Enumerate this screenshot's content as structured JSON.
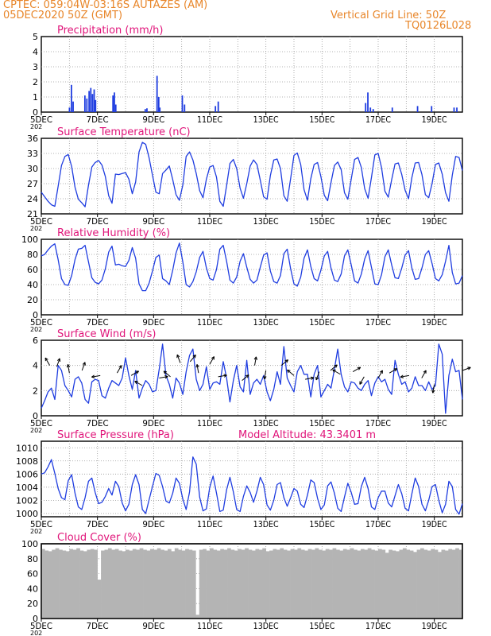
{
  "header": {
    "line1": "CPTEC:   059:04W-03:16S   AUTAZES (AM)",
    "line2": "05DEC2020 50Z (GMT)",
    "grid_note": "Vertical Grid Line: 50Z",
    "code": "TQ0126L028"
  },
  "colors": {
    "header": "#e8862a",
    "title": "#e0157a",
    "series": "#1f3de0",
    "cloud": "#b4b4b4",
    "grid": "#9a9a9a"
  },
  "x_axis": {
    "labels": [
      "5DEC",
      "7DEC",
      "9DEC",
      "11DEC",
      "13DEC",
      "15DEC",
      "17DEC",
      "19DEC"
    ],
    "label_days": [
      0,
      2,
      4,
      6,
      8,
      10,
      12,
      14
    ],
    "day_span": 15,
    "stub": "202"
  },
  "chart_data": [
    {
      "type": "bar",
      "title": "Precipitation (mm/h)",
      "ylim": [
        0,
        5
      ],
      "yticks": [
        0,
        1,
        2,
        3,
        4,
        5
      ],
      "x_days": [
        1.0,
        1.07,
        1.13,
        1.55,
        1.62,
        1.7,
        1.76,
        1.82,
        1.88,
        1.93,
        2.55,
        2.6,
        2.65,
        3.7,
        3.76,
        4.12,
        4.18,
        4.22,
        5.02,
        5.1,
        6.2,
        6.3,
        11.55,
        11.63,
        11.72,
        11.82,
        12.5,
        13.4,
        13.9,
        14.7,
        14.8
      ],
      "values": [
        0.3,
        1.8,
        0.7,
        1.1,
        0.9,
        1.4,
        1.6,
        1.2,
        1.5,
        0.8,
        1.1,
        1.3,
        0.5,
        0.2,
        0.25,
        2.4,
        1.0,
        0.3,
        1.1,
        0.5,
        0.4,
        0.7,
        0.6,
        1.3,
        0.3,
        0.2,
        0.3,
        0.4,
        0.4,
        0.3,
        0.3
      ]
    },
    {
      "type": "line",
      "title": "Surface Temperature (nC)",
      "ylim": [
        21,
        36
      ],
      "yticks": [
        21,
        24,
        27,
        30,
        33,
        36
      ],
      "values": [
        25.3,
        24.4,
        23.5,
        22.8,
        22.5,
        26.5,
        30.6,
        32.4,
        32.8,
        30.4,
        26.3,
        23.9,
        23.2,
        22.4,
        26.7,
        30.3,
        31.2,
        31.6,
        30.7,
        28.4,
        24.6,
        23.1,
        28.9,
        28.8,
        29.0,
        29.2,
        27.9,
        25.0,
        27.3,
        33.3,
        35.2,
        34.8,
        32.1,
        28.7,
        25.3,
        25.0,
        29.0,
        29.7,
        30.5,
        27.8,
        24.8,
        23.7,
        26.7,
        32.4,
        33.3,
        31.7,
        29.0,
        25.6,
        24.2,
        27.9,
        30.3,
        30.6,
        28.3,
        23.5,
        22.5,
        26.6,
        31.0,
        31.8,
        30.0,
        26.1,
        24.1,
        27.0,
        30.5,
        31.7,
        30.8,
        27.7,
        24.4,
        23.9,
        28.6,
        31.7,
        31.9,
        30.0,
        24.6,
        23.5,
        28.0,
        32.6,
        33.1,
        30.8,
        25.8,
        23.7,
        28.0,
        30.8,
        31.2,
        28.4,
        24.7,
        23.6,
        27.2,
        30.6,
        31.3,
        29.8,
        25.2,
        23.9,
        27.9,
        31.8,
        32.2,
        30.2,
        26.0,
        24.1,
        28.2,
        32.7,
        33.0,
        30.2,
        25.5,
        24.3,
        27.8,
        30.9,
        31.1,
        28.8,
        25.7,
        24.0,
        28.2,
        31.1,
        31.2,
        28.8,
        24.8,
        24.2,
        27.0,
        30.8,
        31.1,
        28.9,
        25.2,
        23.5,
        28.7,
        32.4,
        32.2,
        29.6
      ]
    },
    {
      "type": "line",
      "title": "Relative Humidity (%)",
      "ylim": [
        0,
        100
      ],
      "yticks": [
        0,
        20,
        40,
        60,
        80,
        100
      ],
      "values": [
        78,
        80,
        86,
        91,
        94,
        73,
        48,
        40,
        39,
        52,
        73,
        87,
        88,
        92,
        70,
        49,
        43,
        41,
        46,
        61,
        83,
        91,
        66,
        67,
        65,
        64,
        72,
        89,
        75,
        41,
        32,
        32,
        42,
        58,
        76,
        79,
        48,
        45,
        40,
        59,
        82,
        95,
        70,
        40,
        37,
        44,
        57,
        76,
        84,
        62,
        48,
        46,
        60,
        87,
        92,
        71,
        46,
        42,
        50,
        71,
        81,
        63,
        47,
        42,
        46,
        63,
        79,
        82,
        58,
        44,
        42,
        52,
        81,
        87,
        61,
        41,
        38,
        50,
        75,
        86,
        64,
        48,
        45,
        59,
        78,
        84,
        62,
        46,
        44,
        54,
        78,
        86,
        66,
        45,
        42,
        54,
        74,
        85,
        63,
        41,
        40,
        53,
        77,
        86,
        66,
        49,
        48,
        62,
        79,
        85,
        62,
        47,
        48,
        62,
        80,
        85,
        68,
        48,
        45,
        53,
        71,
        92,
        56,
        41,
        42,
        52
      ]
    },
    {
      "type": "line",
      "title": "Surface Wind (m/s)",
      "ylim": [
        0,
        6
      ],
      "yticks": [
        0,
        2,
        4,
        6
      ],
      "values": [
        0.6,
        1.2,
        1.9,
        2.2,
        1.3,
        4.0,
        3.6,
        2.4,
        2.0,
        1.5,
        2.9,
        3.1,
        2.6,
        1.3,
        1.0,
        2.7,
        2.9,
        2.8,
        1.6,
        1.4,
        2.2,
        2.8,
        2.6,
        2.4,
        3.0,
        4.6,
        3.2,
        2.1,
        3.6,
        1.4,
        2.2,
        2.8,
        2.5,
        1.9,
        2.0,
        3.7,
        5.7,
        3.2,
        2.5,
        1.4,
        3.0,
        2.6,
        1.7,
        3.5,
        4.8,
        5.3,
        2.9,
        2.0,
        2.5,
        3.9,
        2.1,
        2.6,
        2.7,
        2.5,
        4.3,
        3.0,
        1.1,
        2.8,
        4.0,
        2.3,
        1.9,
        4.4,
        1.7,
        2.6,
        2.9,
        2.5,
        3.2,
        1.9,
        1.2,
        2.1,
        3.5,
        2.5,
        5.5,
        3.0,
        2.4,
        1.9,
        3.5,
        4.0,
        3.3,
        3.3,
        1.5,
        3.3,
        4.0,
        1.5,
        2.0,
        2.5,
        2.2,
        3.7,
        5.3,
        3.3,
        2.3,
        1.9,
        2.7,
        2.6,
        2.2,
        2.0,
        2.5,
        2.8,
        1.6,
        2.6,
        3.1,
        2.7,
        2.9,
        2.1,
        1.7,
        4.4,
        3.3,
        2.5,
        2.7,
        1.9,
        2.2,
        3.1,
        2.4,
        2.4,
        2.0,
        2.7,
        2.1,
        2.4,
        5.7,
        4.9,
        0.2,
        3.2,
        4.5,
        3.5,
        3.6,
        1.3
      ]
    },
    {
      "type": "line",
      "title": "Surface Pressure (hPa)",
      "annotation": "Model Altitude: 43.3401 m",
      "ylim": [
        999.5,
        1011
      ],
      "yticks": [
        1000,
        1002,
        1004,
        1006,
        1008,
        1010
      ],
      "values": [
        1006.0,
        1006.2,
        1007.1,
        1008.2,
        1006.1,
        1003.8,
        1002.4,
        1002.1,
        1005.0,
        1005.9,
        1003.1,
        1001.0,
        1000.6,
        1002.4,
        1004.9,
        1005.4,
        1003.2,
        1001.5,
        1001.7,
        1002.6,
        1003.8,
        1002.8,
        1004.9,
        1004.1,
        1001.6,
        1000.4,
        1001.4,
        1004.4,
        1005.9,
        1004.4,
        1000.6,
        1000.0,
        1002.1,
        1004.1,
        1006.1,
        1005.8,
        1004.1,
        1001.9,
        1001.6,
        1003.1,
        1005.4,
        1004.6,
        1002.2,
        1000.6,
        1003.3,
        1008.6,
        1007.5,
        1002.5,
        1000.4,
        1000.7,
        1004.0,
        1005.7,
        1003.1,
        1000.3,
        1000.5,
        1003.6,
        1005.5,
        1003.3,
        1000.6,
        1000.3,
        1002.6,
        1004.2,
        1003.2,
        1001.7,
        1003.4,
        1005.5,
        1004.4,
        1001.3,
        1000.5,
        1002.0,
        1004.4,
        1004.7,
        1002.4,
        1001.1,
        1002.4,
        1003.8,
        1003.4,
        1001.4,
        1000.9,
        1002.8,
        1005.1,
        1004.7,
        1002.3,
        1000.6,
        1001.3,
        1004.2,
        1004.8,
        1003.1,
        1000.8,
        1000.3,
        1002.5,
        1004.6,
        1003.2,
        1001.4,
        1001.5,
        1004.1,
        1005.5,
        1003.8,
        1001.0,
        1000.6,
        1002.4,
        1003.4,
        1003.4,
        1001.6,
        1001.0,
        1002.7,
        1004.4,
        1003.0,
        1000.8,
        1000.4,
        1003.0,
        1005.4,
        1004.1,
        1001.4,
        1000.4,
        1002.0,
        1004.1,
        1004.4,
        1002.0,
        1000.1,
        1001.4,
        1004.9,
        1004.1,
        1000.6,
        999.9,
        1001.5
      ]
    },
    {
      "type": "area",
      "title": "Cloud Cover (%)",
      "ylim": [
        0,
        100
      ],
      "yticks": [
        0,
        20,
        40,
        60,
        80,
        100
      ],
      "values": [
        93,
        91,
        90,
        92,
        94,
        92,
        91,
        90,
        93,
        92,
        94,
        91,
        90,
        92,
        93,
        92,
        52,
        91,
        92,
        94,
        92,
        93,
        91,
        90,
        92,
        91,
        93,
        92,
        94,
        92,
        91,
        93,
        92,
        94,
        92,
        91,
        93,
        90,
        94,
        92,
        91,
        93,
        92,
        91,
        5,
        92,
        93,
        91,
        94,
        92,
        91,
        93,
        92,
        94,
        92,
        91,
        93,
        92,
        94,
        92,
        91,
        93,
        92,
        94,
        90,
        91,
        93,
        92,
        94,
        92,
        91,
        93,
        92,
        94,
        92,
        91,
        93,
        92,
        94,
        92,
        91,
        93,
        92,
        94,
        92,
        91,
        93,
        92,
        94,
        92,
        91,
        93,
        92,
        94,
        92,
        91,
        93,
        92,
        88,
        92,
        91,
        90,
        92,
        94,
        92,
        91,
        89,
        92,
        94,
        92,
        91,
        93,
        92,
        89,
        92,
        91,
        93,
        92,
        94,
        92
      ]
    }
  ]
}
